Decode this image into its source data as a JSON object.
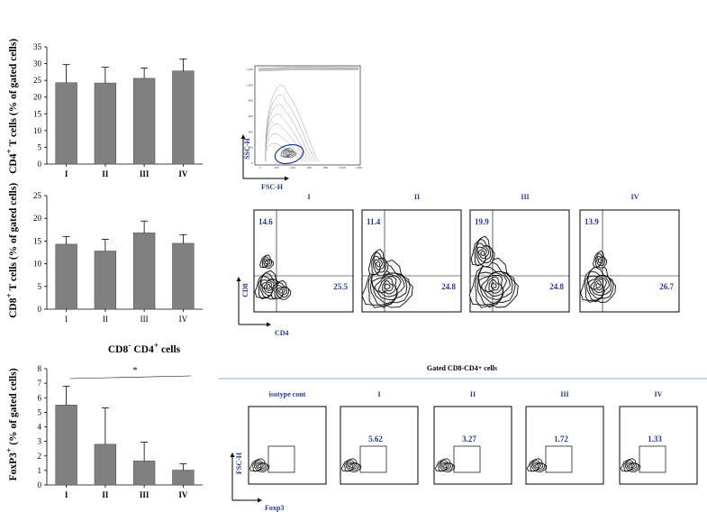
{
  "chart_data": [
    {
      "type": "bar",
      "ylabel_html": "CD4<sup>+</sup> T cells (% of gated cells)",
      "ylabel_plain": "CD4+ T cells (% of gated cells)",
      "categories": [
        "I",
        "II",
        "III",
        "IV"
      ],
      "values": [
        24.3,
        24.2,
        25.6,
        27.8
      ],
      "errors": [
        5.4,
        4.7,
        3.1,
        3.6
      ],
      "ylim": [
        0,
        35
      ],
      "yticks": [
        "0",
        "5",
        "10",
        "15",
        "20",
        "25",
        "30",
        "35"
      ]
    },
    {
      "type": "bar",
      "ylabel_html": "CD8<sup>+</sup> T cells (% of gated cells)",
      "ylabel_plain": "CD8+ T cells (% of gated cells)",
      "categories": [
        "I",
        "II",
        "III",
        "IV"
      ],
      "values": [
        14.3,
        12.8,
        16.8,
        14.5
      ],
      "errors": [
        1.7,
        2.6,
        2.6,
        1.9
      ],
      "ylim": [
        0,
        25
      ],
      "yticks": [
        "0",
        "5",
        "10",
        "15",
        "20",
        "25"
      ]
    },
    {
      "type": "bar",
      "title_html": "CD8<sup>-</sup> CD4<sup>+</sup> cells",
      "ylabel_html": "FoxP3<sup>+</sup> (% of gated cells)",
      "ylabel_plain": "FoxP3+ (% of gated cells)",
      "categories": [
        "I",
        "II",
        "III",
        "IV"
      ],
      "values": [
        5.5,
        2.8,
        1.65,
        1.02
      ],
      "errors": [
        1.3,
        2.5,
        1.3,
        0.43
      ],
      "ylim": [
        0,
        8
      ],
      "yticks": [
        "0",
        "1",
        "2",
        "3",
        "4",
        "5",
        "6",
        "7",
        "8"
      ],
      "significance": "*"
    }
  ],
  "gating": {
    "y_axis": "SSC-H",
    "x_axis": "FSC-H",
    "ticks": [
      "0",
      "200",
      "400",
      "600",
      "800",
      "1,000",
      "1,200"
    ]
  },
  "cd4cd8": {
    "y_axis": "CD8",
    "x_axis": "CD4",
    "panels": [
      {
        "group": "I",
        "upper_left": "14.6",
        "lower_right": "25.5"
      },
      {
        "group": "II",
        "upper_left": "11.4",
        "lower_right": "24.8"
      },
      {
        "group": "III",
        "upper_left": "19.9",
        "lower_right": "24.8"
      },
      {
        "group": "IV",
        "upper_left": "13.9",
        "lower_right": "26.7"
      }
    ]
  },
  "foxp3": {
    "header": "Gated CD8-CD4+ cells",
    "y_axis": "FSC-H",
    "x_axis": "Foxp3",
    "panels": [
      {
        "title": "isotype cont",
        "value": ""
      },
      {
        "title": "I",
        "value": "5.62"
      },
      {
        "title": "II",
        "value": "3.27"
      },
      {
        "title": "III",
        "value": "1.72"
      },
      {
        "title": "IV",
        "value": "1.33"
      }
    ]
  },
  "colors": {
    "bar": "#808080",
    "label_blue": "#1f3a9a",
    "gate": "#1a2fb0",
    "divider": "#5b8fc7"
  }
}
